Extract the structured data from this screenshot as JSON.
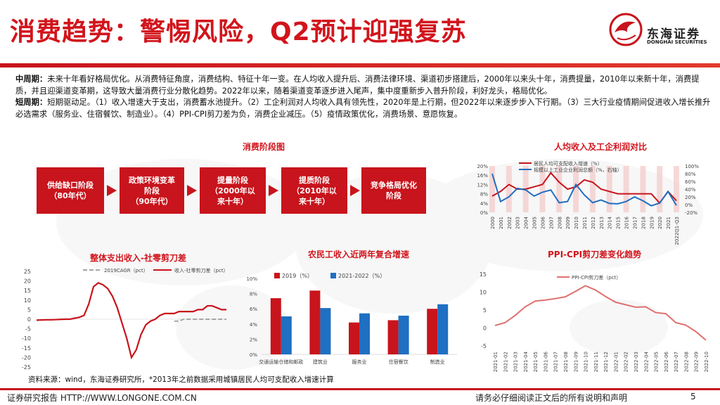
{
  "title": "消费趋势：警惕风险，Q2预计迎强复苏",
  "logo": {
    "cn": "东海证券",
    "en": "DONGHAI SECURITIES"
  },
  "paragraph": {
    "line1_label": "中周期：",
    "line1_text": "未来十年看好格局优化。从消费特征角度，消费结构、特征十年一变。在人均收入提升后、消费法律环境、渠道初步搭建后，2000年以来头十年，消费提量，2010年以来新十年，消费提质，并且迎渠道变革期，这导致大量消费行业分散化趋势。2022年以来，随着渠道变革逐步进入尾声，集中度重新步入普升阶段，利好龙头，格局优化。",
    "line2_label": "短周期：",
    "line2_text": "短期驱动足。（1）收入增速大于支出，消费蓄水池提升。（2）工企利润对人均收入具有领先性，2020年是上行期，但2022年以来逐步步入下行期。（3）三大行业疫情期间促进收入增长推升必选需求（服务业、住宿餐饮、制造业）。（4）PPI-CPI剪刀差为负，消费企业减压。（5）疫情政策优化，消费场景、意愿恢复。"
  },
  "stages_chart": {
    "title": "消费阶段图",
    "stages": [
      "供给缺口阶段\n（80年代）",
      "政策环境变革\n阶段\n（90年代）",
      "提量阶段\n（2000年以\n来十年）",
      "提质阶段\n（2010年以\n来十年）",
      "竞争格局优化\n阶段"
    ]
  },
  "colors": {
    "red": "#c8141c",
    "blue": "#1f6fc2",
    "gray": "#a6a6a6",
    "pink": "#f4c7c7"
  },
  "chart_data": [
    {
      "type": "line",
      "title": "人均收入及工企利润对比",
      "categories": [
        "2000",
        "2001",
        "2002",
        "2003",
        "2004",
        "2005",
        "2006",
        "2007",
        "2008",
        "2009",
        "2010",
        "2011",
        "2012",
        "2013",
        "2014",
        "2015",
        "2016",
        "2017",
        "2018",
        "2019",
        "2020",
        "2021",
        "2022Q1-Q3"
      ],
      "series": [
        {
          "name": "居民人均可支配收入增速（%）",
          "axis": "left",
          "values": [
            7,
            9,
            12,
            10,
            10,
            11,
            12,
            17,
            13,
            10,
            11,
            14,
            13,
            10,
            9,
            8,
            8,
            8,
            8,
            8,
            4,
            9,
            5
          ]
        },
        {
          "name": "规模以上工业企业利润总额（%，右轴）",
          "axis": "right",
          "values": [
            80,
            8,
            20,
            42,
            38,
            22,
            32,
            38,
            5,
            8,
            52,
            25,
            5,
            12,
            3,
            2,
            8,
            20,
            10,
            -3,
            4,
            34,
            -2
          ]
        }
      ],
      "ylim_left": [
        0,
        20
      ],
      "yticks_left": [
        "20%",
        "16%",
        "12%",
        "8%",
        "4%",
        "0%"
      ],
      "ylim_right": [
        -20,
        100
      ],
      "yticks_right": [
        "100%",
        "80%",
        "60%",
        "40%",
        "20%",
        "0%",
        "-20%"
      ],
      "legend": "top"
    },
    {
      "type": "line",
      "title": "整体支出收入-社零剪刀差",
      "series": [
        {
          "name": "2019CAGR（pct）",
          "values": [
            null,
            null,
            null,
            null,
            null,
            null,
            null,
            null,
            null,
            null,
            null,
            null,
            null,
            null,
            null,
            null,
            null,
            null,
            null,
            null,
            null,
            null,
            null,
            null,
            null,
            null,
            null,
            null,
            null,
            -1,
            -1,
            0,
            0,
            0,
            0,
            0,
            0,
            0,
            0,
            0,
            0
          ]
        },
        {
          "name": "收入-社零剪刀差（pct）",
          "values": [
            -0.5,
            -0.4,
            -0.3,
            -0.3,
            -0.2,
            -0.1,
            0,
            0,
            0.5,
            1,
            2,
            8,
            17,
            19,
            18,
            16,
            12,
            6,
            -2,
            -10,
            -20,
            -16,
            -8,
            -3,
            -1,
            0,
            2,
            3,
            3,
            3,
            4,
            4,
            4,
            4,
            5,
            5,
            7,
            7,
            6,
            5,
            5
          ]
        }
      ],
      "ylim": [
        -25,
        25
      ],
      "yticks": [
        "25",
        "20",
        "15",
        "10",
        "5",
        "0",
        "-5",
        "-10",
        "-15",
        "-20",
        "-25"
      ],
      "legend": "top"
    },
    {
      "type": "bar",
      "title": "农民工收入近两年复合增速",
      "categories": [
        "交通运输仓储和邮政",
        "建筑业",
        "服务业",
        "住宿餐饮",
        "制造业"
      ],
      "series": [
        {
          "name": "2019（%）",
          "values": [
            7.4,
            8.4,
            4.2,
            4.5,
            6.0
          ]
        },
        {
          "name": "2021-2022（%）",
          "values": [
            5.0,
            6.1,
            5.4,
            5.1,
            6.6
          ]
        }
      ],
      "ylim": [
        0,
        10
      ],
      "yticks": [
        "10%",
        "8%",
        "6%",
        "4%",
        "2%",
        "0%"
      ],
      "legend": "top"
    },
    {
      "type": "line",
      "title": "PPI-CPI剪刀差变化趋势",
      "categories": [
        "2021-01",
        "2021-02",
        "2021-03",
        "2021-04",
        "2021-05",
        "2021-06",
        "2021-07",
        "2021-08",
        "2021-09",
        "2021-10",
        "2021-11",
        "2021-12",
        "2022-01",
        "2022-02",
        "2022-03",
        "2022-04",
        "2022-05",
        "2022-06",
        "2022-07",
        "2022-08",
        "2022-09",
        "2022-10"
      ],
      "series": [
        {
          "name": "PPI-CPI剪刀差（pct）",
          "values": [
            0.7,
            1.5,
            3.5,
            5.9,
            7.5,
            7.8,
            8.2,
            8.7,
            10.2,
            11.8,
            10.6,
            8.8,
            7.2,
            6.5,
            5.8,
            5.9,
            4.3,
            4.0,
            1.5,
            0.8,
            -1.0,
            -3.4
          ]
        }
      ],
      "ylim": [
        -5,
        15
      ],
      "yticks": [
        "15",
        "10",
        "5",
        "0",
        "-5"
      ],
      "legend": "top"
    }
  ],
  "source": "资料来源：wind，东海证券研究所，*2013年之前数据采用城镇居民人均可支配收入增速计算",
  "footer": {
    "left": "证券研究报告 HTTP://WWW.LONGONE.COM.CN",
    "right": "请务必仔细阅读正文后的所有说明和声明",
    "page": "5"
  }
}
